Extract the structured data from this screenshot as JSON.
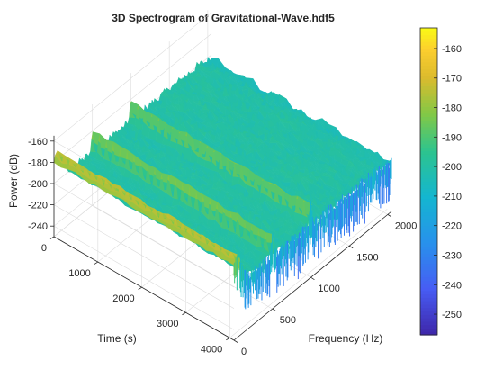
{
  "chart_data": {
    "type": "surface",
    "title": "3D Spectrogram of Gravitational-Wave.hdf5",
    "xlabel": "Frequency (Hz)",
    "ylabel": "Time (s)",
    "zlabel": "Power (dB)",
    "x": {
      "ticks": [
        0,
        500,
        1000,
        1500,
        2000
      ],
      "lim": [
        0,
        2048
      ]
    },
    "y": {
      "ticks": [
        0,
        1000,
        2000,
        3000,
        4000
      ],
      "lim": [
        0,
        4096
      ]
    },
    "z": {
      "ticks": [
        -160,
        -180,
        -200,
        -220,
        -240
      ],
      "lim": [
        -250,
        -155
      ]
    },
    "colorbar": {
      "colormap": "parula",
      "lim": [
        -257,
        -153
      ],
      "ticks": [
        -160,
        -170,
        -180,
        -190,
        -200,
        -210,
        -220,
        -230,
        -240,
        -250
      ]
    },
    "noise_floor_db": -200,
    "spectral_lines": [
      {
        "frequency_hz": 40,
        "peak_db": -172
      },
      {
        "frequency_hz": 500,
        "peak_db": -178
      },
      {
        "frequency_hz": 1000,
        "peak_db": -178
      }
    ],
    "grid": true,
    "colors": {
      "axis": "#262626",
      "grid": "#dcdcdc",
      "surface_low": "#3e26a8",
      "surface_mid": "#1fb8aa",
      "surface_high": "#f9fb15"
    }
  }
}
